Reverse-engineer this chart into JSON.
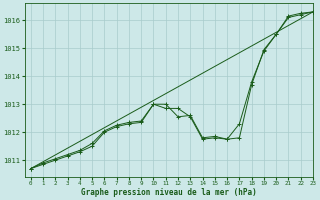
{
  "xlabel": "Graphe pression niveau de la mer (hPa)",
  "xlim": [
    -0.5,
    23
  ],
  "ylim": [
    1010.4,
    1016.6
  ],
  "yticks": [
    1011,
    1012,
    1013,
    1014,
    1015,
    1016
  ],
  "xticks": [
    0,
    1,
    2,
    3,
    4,
    5,
    6,
    7,
    8,
    9,
    10,
    11,
    12,
    13,
    14,
    15,
    16,
    17,
    18,
    19,
    20,
    21,
    22,
    23
  ],
  "bg_color": "#cde8e8",
  "grid_color": "#a8cccc",
  "line_color": "#1a5c1a",
  "line1_x": [
    0,
    1,
    2,
    3,
    4,
    5,
    6,
    7,
    8,
    9,
    10,
    11,
    12,
    13,
    14,
    15,
    16,
    17,
    18,
    19,
    20,
    21,
    22,
    23
  ],
  "line1_y": [
    1010.7,
    1010.85,
    1011.0,
    1011.15,
    1011.3,
    1011.5,
    1012.0,
    1012.2,
    1012.3,
    1012.35,
    1013.0,
    1012.85,
    1012.85,
    1012.55,
    1011.75,
    1011.8,
    1011.75,
    1011.8,
    1013.7,
    1014.95,
    1015.5,
    1016.1,
    1016.2,
    1016.3
  ],
  "line2_x": [
    0,
    1,
    2,
    3,
    4,
    5,
    6,
    7,
    8,
    9,
    10,
    11,
    12,
    13,
    14,
    15,
    16,
    17,
    18,
    19,
    20,
    21,
    22,
    23
  ],
  "line2_y": [
    1010.7,
    1010.9,
    1011.05,
    1011.2,
    1011.35,
    1011.6,
    1012.05,
    1012.25,
    1012.35,
    1012.4,
    1013.0,
    1013.0,
    1012.55,
    1012.6,
    1011.8,
    1011.85,
    1011.75,
    1012.3,
    1013.8,
    1014.9,
    1015.5,
    1016.15,
    1016.25,
    1016.3
  ],
  "line3_x": [
    0,
    23
  ],
  "line3_y": [
    1010.7,
    1016.3
  ]
}
